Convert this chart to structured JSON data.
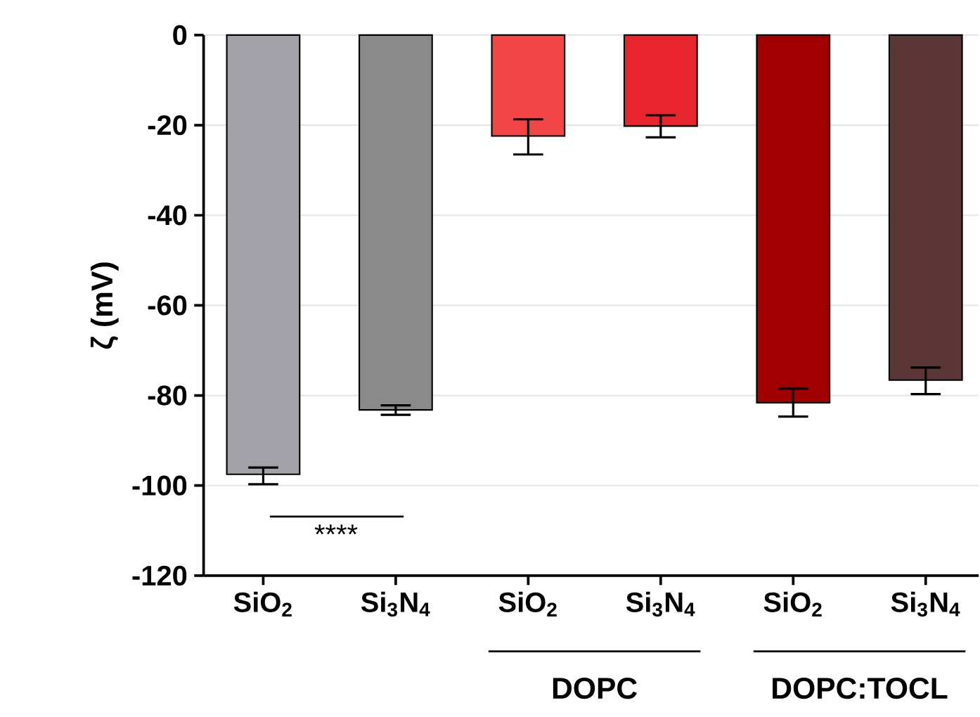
{
  "chart_data": {
    "type": "bar",
    "ylabel": "ζ (mV)",
    "categories": [
      "SiO$_{2}$",
      "Si$_{3}$N$_{4}$",
      "SiO$_{2}$",
      "Si$_{3}$N$_{4}$",
      "SiO$_{2}$",
      "Si$_{3}$N$_{4}$"
    ],
    "values": [
      -97.5,
      -83.2,
      -22.4,
      -20.2,
      -81.6,
      -76.6
    ],
    "errors": [
      [
        -99.7,
        -96.0
      ],
      [
        -84.3,
        -82.2
      ],
      [
        -26.5,
        -18.7
      ],
      [
        -22.7,
        -17.8
      ],
      [
        -84.7,
        -78.5
      ],
      [
        -79.7,
        -73.8
      ]
    ],
    "colors": [
      "#a2a2a8",
      "#8a8a8a",
      "#f24545",
      "#e8242c",
      "#a00000",
      "#5a3636"
    ],
    "ylim": [
      -120,
      0
    ],
    "yticks": [
      -120,
      -100,
      -80,
      -60,
      -40,
      -20,
      0
    ],
    "grid": "y",
    "annotations": [
      "****",
      "DOPC",
      "DOPC:TOCL"
    ]
  }
}
